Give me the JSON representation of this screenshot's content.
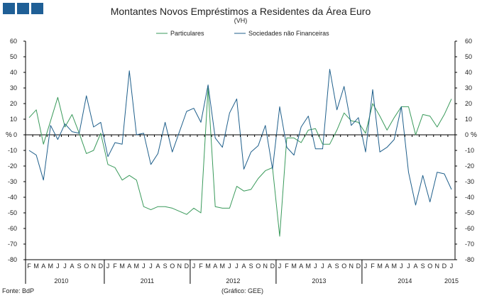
{
  "header": {
    "logo_name": "bdp-logo-blocks",
    "title": "Montantes Novos Empréstimos a Residentes da Área Euro",
    "subtitle": "(VH)"
  },
  "footer": {
    "source": "Fonte: BdP",
    "credit": "(Gráfico: GEE)"
  },
  "colors": {
    "particulares": "#3a9a5b",
    "sociedades": "#1f5f8b",
    "logo": "#1f5f96",
    "axis": "#000000"
  },
  "chart_data": {
    "type": "line",
    "title": "Montantes Novos Empréstimos a Residentes da Área Euro",
    "subtitle": "(VH)",
    "ylabel_left": "%",
    "ylabel_right": "%",
    "ylim": [
      -80,
      60
    ],
    "yticks": [
      -80,
      -70,
      -60,
      -50,
      -40,
      -30,
      -20,
      -10,
      0,
      10,
      20,
      30,
      40,
      50,
      60
    ],
    "grid": false,
    "legend_position": "top-center",
    "month_labels": [
      "F",
      "M",
      "A",
      "M",
      "J",
      "J",
      "A",
      "S",
      "O",
      "N",
      "D",
      "J",
      "F",
      "M",
      "A",
      "M",
      "J",
      "J",
      "A",
      "S",
      "O",
      "N",
      "D",
      "J",
      "F",
      "M",
      "A",
      "M",
      "J",
      "J",
      "A",
      "S",
      "O",
      "N",
      "D",
      "J",
      "F",
      "M",
      "A",
      "M",
      "J",
      "J",
      "A",
      "S",
      "O",
      "N",
      "D",
      "J",
      "F",
      "M",
      "A",
      "M",
      "J",
      "J",
      "A",
      "S",
      "O",
      "N",
      "D",
      "J"
    ],
    "year_labels": [
      {
        "label": "2010",
        "index": 4.5
      },
      {
        "label": "2011",
        "index": 16.5
      },
      {
        "label": "2012",
        "index": 28.5
      },
      {
        "label": "2013",
        "index": 40.5
      },
      {
        "label": "2014",
        "index": 52.5
      },
      {
        "label": "2015",
        "index": 59
      }
    ],
    "series": [
      {
        "name": "Particulares",
        "color": "#3a9a5b",
        "values": [
          11,
          16,
          -6,
          9,
          24,
          5,
          13,
          1,
          -12,
          -10,
          1,
          -19,
          -21,
          -29,
          -26,
          -29,
          -46,
          -48,
          -46,
          -46,
          -47,
          -49,
          -51,
          -47,
          -50,
          30,
          -46,
          -47,
          -47,
          -33,
          -36,
          -35,
          -28,
          -23,
          -21,
          -65,
          -2,
          -2,
          -5,
          3,
          4,
          -6,
          -6,
          3,
          14,
          9,
          8,
          1,
          20,
          12,
          3,
          11,
          18,
          18,
          0,
          13,
          12,
          5,
          13,
          23
        ]
      },
      {
        "name": "Sociedades não Financeiras",
        "color": "#1f5f8b",
        "values": [
          -10,
          -13,
          -29,
          6,
          -3,
          7,
          2,
          1,
          25,
          5,
          8,
          -14,
          -5,
          -6,
          41,
          0,
          1,
          -19,
          -12,
          8,
          -11,
          2,
          15,
          17,
          8,
          32,
          -2,
          -8,
          14,
          23,
          -22,
          -11,
          -7,
          6,
          -22,
          18,
          -8,
          -13,
          5,
          12,
          -9,
          -9,
          42,
          16,
          31,
          6,
          11,
          -11,
          29,
          -11,
          -8,
          -3,
          18,
          -24,
          -45,
          -26,
          -43,
          -24,
          -25,
          -35
        ]
      }
    ]
  }
}
